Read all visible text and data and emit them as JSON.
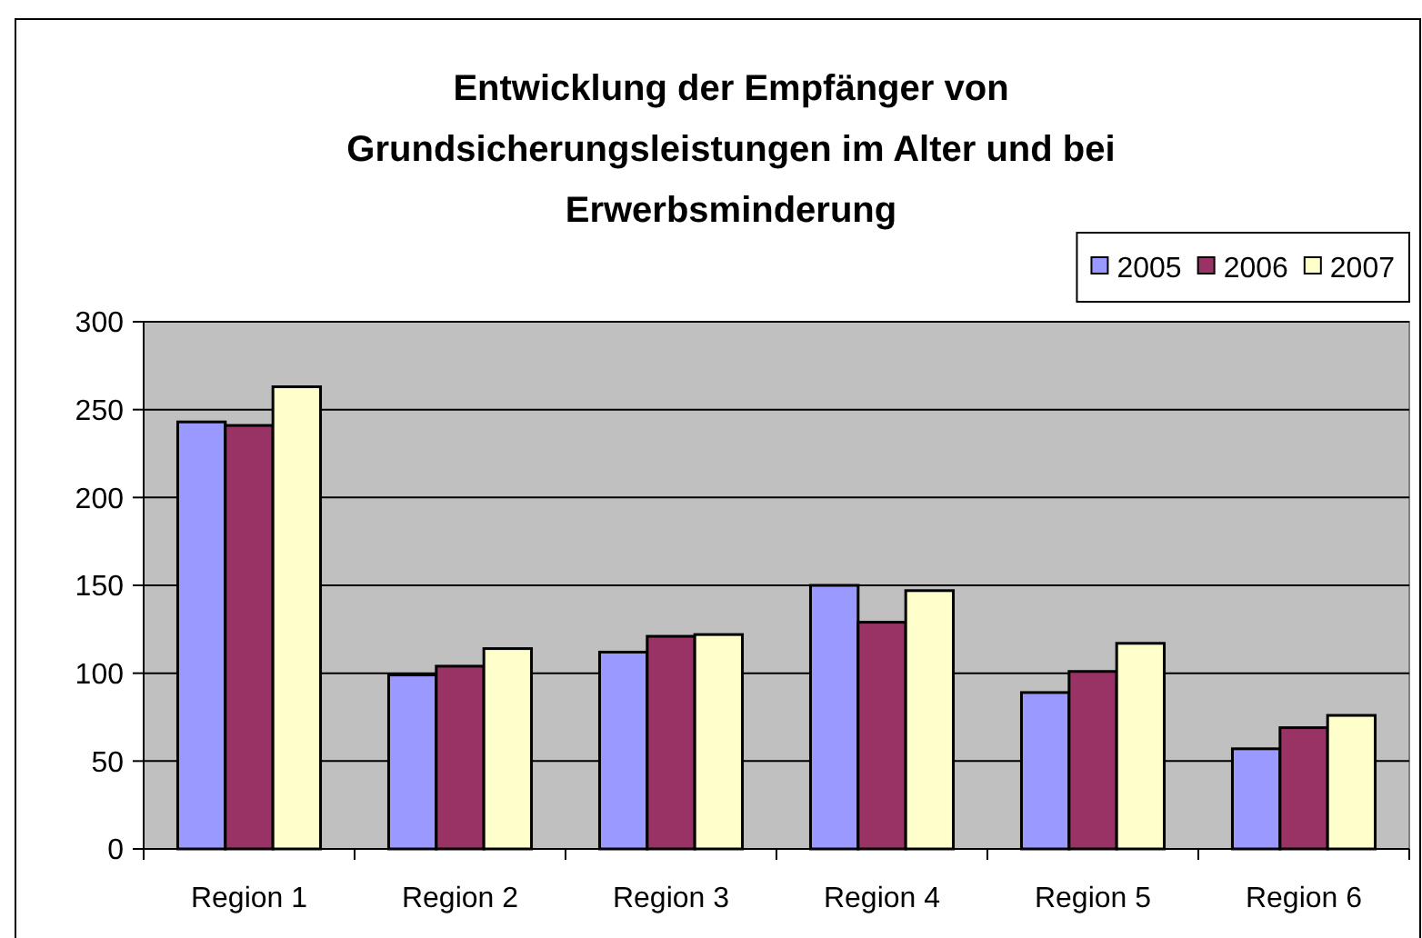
{
  "chart_data": {
    "type": "bar",
    "title": "Entwicklung der Empfänger von Grundsicherungsleistungen im Alter und bei Erwerbsminderung",
    "categories": [
      "Region 1",
      "Region 2",
      "Region 3",
      "Region 4",
      "Region 5",
      "Region 6"
    ],
    "series": [
      {
        "name": "2005",
        "color": "#9999ff",
        "values": [
          243,
          99,
          112,
          150,
          89,
          57
        ]
      },
      {
        "name": "2006",
        "color": "#993366",
        "values": [
          241,
          104,
          121,
          129,
          101,
          69
        ]
      },
      {
        "name": "2007",
        "color": "#ffffcc",
        "values": [
          263,
          114,
          122,
          147,
          117,
          76
        ]
      }
    ],
    "ylim": [
      0,
      300
    ],
    "yticks": [
      0,
      50,
      100,
      150,
      200,
      250,
      300
    ],
    "grid": "y",
    "legend": "top right"
  }
}
